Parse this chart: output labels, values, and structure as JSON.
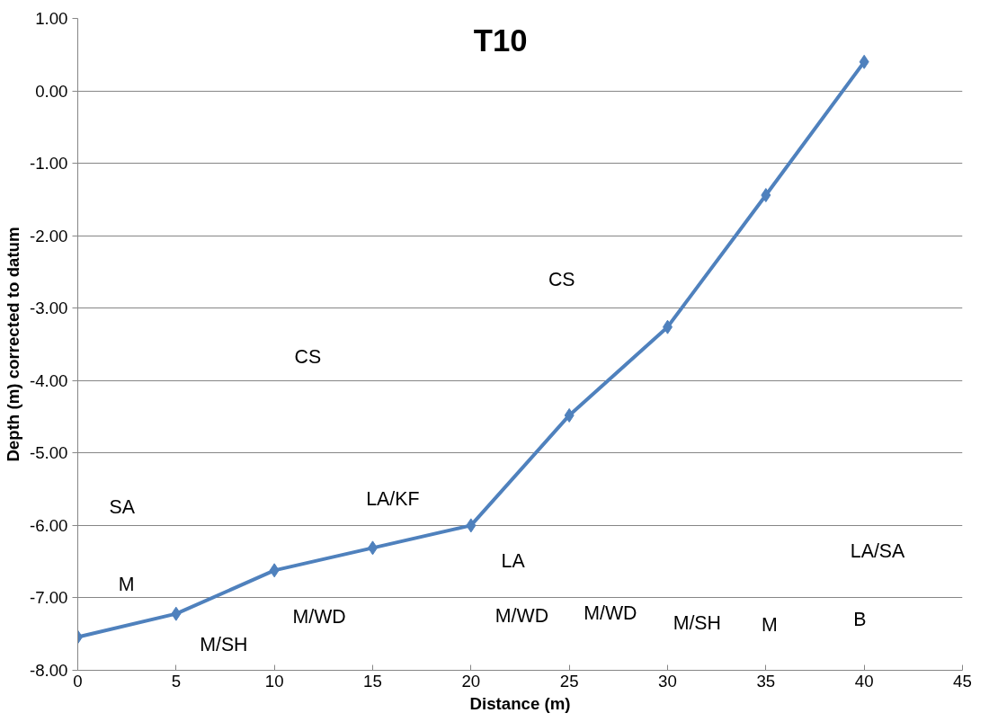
{
  "chart_data": {
    "type": "line",
    "title": "T10",
    "xlabel": "Distance (m)",
    "ylabel": "Depth (m) corrected to datum",
    "x": [
      0,
      5,
      10,
      15,
      20,
      25,
      30,
      35,
      40
    ],
    "series": [
      {
        "color": "#4f81bd",
        "values": [
          -7.54,
          -7.22,
          -6.62,
          -6.31,
          -6.0,
          -4.48,
          -3.26,
          -1.44,
          0.4
        ]
      }
    ],
    "marker": "diamond",
    "line_style": "solid",
    "grid": "y",
    "xlim": [
      0,
      45
    ],
    "xticks": [
      0,
      5,
      10,
      15,
      20,
      25,
      30,
      35,
      40,
      45
    ],
    "ylim": [
      -8,
      1
    ],
    "yticks": [
      {
        "value": -8,
        "label": "-8.00"
      },
      {
        "value": -7,
        "label": "-7.00"
      },
      {
        "value": -6,
        "label": "-6.00"
      },
      {
        "value": -5,
        "label": "-5.00"
      },
      {
        "value": -4,
        "label": "-4.00"
      },
      {
        "value": -3,
        "label": "-3.00"
      },
      {
        "value": -2,
        "label": "-2.00"
      },
      {
        "value": -1,
        "label": "-1.00"
      },
      {
        "value": 0,
        "label": "0.00"
      },
      {
        "value": 1,
        "label": "1.00"
      }
    ],
    "annotations": [
      "SA",
      "M",
      "M/SH",
      "M/WD",
      "CS",
      "LA/KF",
      "LA",
      "M/WD",
      "M/WD",
      "CS",
      "M/SH",
      "M",
      "B",
      "LA/SA"
    ]
  }
}
